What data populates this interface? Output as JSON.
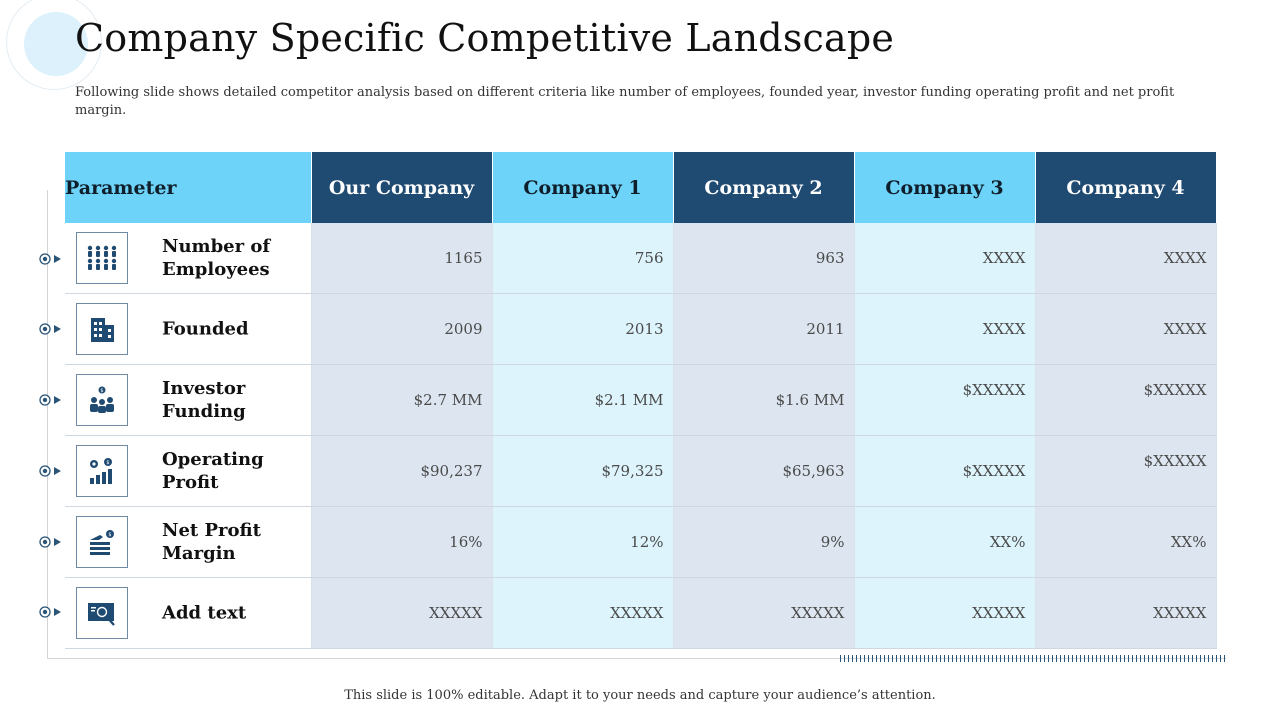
{
  "slide": {
    "title": "Company Specific Competitive Landscape",
    "subtitle": "Following slide shows detailed competitor analysis based on different criteria like number of employees, founded year, investor funding operating profit and net profit margin.",
    "footer": "This slide is 100% editable. Adapt it to your needs and capture your audience’s attention."
  },
  "table": {
    "headers": [
      "Parameter",
      "Our Company",
      "Company 1",
      "Company 2",
      "Company 3",
      "Company 4"
    ],
    "rows": [
      {
        "label": "Number of Employees",
        "icon": "employees-icon",
        "values": [
          "1165",
          "756",
          "963",
          "XXXX",
          "XXXX"
        ]
      },
      {
        "label": "Founded",
        "icon": "building-icon",
        "values": [
          "2009",
          "2013",
          "2011",
          "XXXX",
          "XXXX"
        ]
      },
      {
        "label": "Investor Funding",
        "icon": "investor-icon",
        "values": [
          "$2.7 MM",
          "$2.1 MM",
          "$1.6 MM",
          "$XXXXX",
          "$XXXXX"
        ]
      },
      {
        "label": "Operating Profit",
        "icon": "profit-chart-icon",
        "values": [
          "$90,237",
          "$79,325",
          "$65,963",
          "$XXXXX",
          "$XXXXX"
        ]
      },
      {
        "label": "Net Profit Margin",
        "icon": "margin-icon",
        "values": [
          "16%",
          "12%",
          "9%",
          "XX%",
          "XX%"
        ]
      },
      {
        "label": "Add text",
        "icon": "presentation-icon",
        "values": [
          "XXXXX",
          "XXXXX",
          "XXXXX",
          "XXXXX",
          "XXXXX"
        ]
      }
    ]
  },
  "colors": {
    "header_dark": "#1f4a72",
    "header_light": "#6dd3f8",
    "cell_blue": "#dde6f0",
    "cell_cyan": "#ddf4fc",
    "icon": "#1f4a72"
  }
}
